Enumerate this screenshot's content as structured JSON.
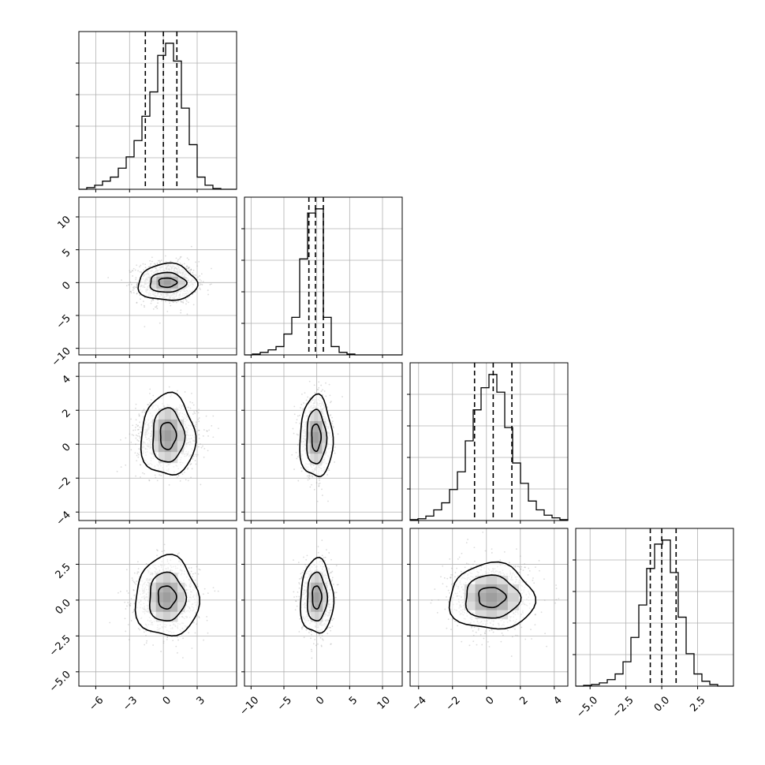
{
  "chart_data": {
    "type": "corner",
    "title": "",
    "grid": true,
    "quantile_lines": "dashed",
    "contour_levels": 3,
    "parameters": [
      {
        "range": [
          -7.5,
          6.5
        ],
        "ticks": [
          -6,
          -3,
          0,
          3
        ],
        "tick_labels": [
          "−6",
          "−3",
          "0",
          "3"
        ],
        "quantiles": [
          -1.6,
          0.0,
          1.2
        ],
        "histogram": {
          "bin_edges": [
            -7.5,
            -6.8,
            -6.1,
            -5.4,
            -4.7,
            -4.0,
            -3.3,
            -2.6,
            -1.9,
            -1.2,
            -0.5,
            0.2,
            0.9,
            1.6,
            2.3,
            3.0,
            3.7,
            4.4,
            5.1,
            5.8,
            6.5
          ],
          "counts": [
            0,
            2,
            5,
            10,
            15,
            26,
            40,
            60,
            90,
            120,
            165,
            180,
            158,
            100,
            55,
            15,
            5,
            1,
            0,
            0
          ]
        }
      },
      {
        "range": [
          -11,
          13
        ],
        "ticks": [
          -10,
          -5,
          0,
          5,
          10
        ],
        "tick_labels": [
          "−10",
          "−5",
          "0",
          "5",
          "10"
        ],
        "quantiles": [
          -1.2,
          -0.2,
          1.0
        ],
        "histogram": {
          "bin_edges": [
            -11,
            -9.8,
            -8.6,
            -7.4,
            -6.2,
            -5.0,
            -3.8,
            -2.6,
            -1.4,
            -0.2,
            1.0,
            2.2,
            3.4,
            4.6,
            5.8,
            7.0,
            8.2,
            9.4,
            10.6,
            11.8,
            13
          ],
          "counts": [
            0,
            1,
            3,
            6,
            10,
            25,
            45,
            115,
            170,
            175,
            45,
            10,
            3,
            1,
            0,
            0,
            0,
            0,
            0,
            0
          ]
        }
      },
      {
        "range": [
          -4.5,
          4.8
        ],
        "ticks": [
          -4,
          -2,
          0,
          2,
          4
        ],
        "tick_labels": [
          "−4",
          "−2",
          "0",
          "2",
          "4"
        ],
        "quantiles": [
          -0.7,
          0.4,
          1.5
        ],
        "histogram": {
          "bin_edges": [
            -4.5,
            -4.035,
            -3.57,
            -3.105,
            -2.64,
            -2.175,
            -1.71,
            -1.245,
            -0.78,
            -0.315,
            0.15,
            0.615,
            1.08,
            1.545,
            2.01,
            2.475,
            2.94,
            3.405,
            3.87,
            4.335,
            4.8
          ],
          "counts": [
            1,
            2,
            5,
            12,
            20,
            35,
            55,
            90,
            125,
            150,
            165,
            145,
            105,
            65,
            42,
            22,
            12,
            6,
            3,
            1
          ]
        }
      },
      {
        "range": [
          -6,
          5
        ],
        "ticks": [
          -5.0,
          -2.5,
          0.0,
          2.5
        ],
        "tick_labels": [
          "−5.0",
          "−2.5",
          "0.0",
          "2.5"
        ],
        "quantiles": [
          -0.8,
          0.0,
          1.0
        ],
        "histogram": {
          "bin_edges": [
            -6.0,
            -5.45,
            -4.9,
            -4.35,
            -3.8,
            -3.25,
            -2.7,
            -2.15,
            -1.6,
            -1.05,
            -0.5,
            0.05,
            0.6,
            1.15,
            1.7,
            2.25,
            2.8,
            3.35,
            3.9,
            4.45,
            5.0
          ],
          "counts": [
            0,
            1,
            2,
            4,
            8,
            15,
            30,
            60,
            100,
            145,
            175,
            180,
            140,
            85,
            40,
            15,
            6,
            2,
            0,
            0
          ]
        }
      }
    ],
    "pairs": [
      {
        "row": 1,
        "col": 0,
        "x_spread": 1.3,
        "y_spread": 1.6,
        "contours": [
          {
            "cx": 0.35,
            "cy": 0.0,
            "rx": 2.6,
            "ry": 2.8
          },
          {
            "cx": 0.35,
            "cy": 0.0,
            "rx": 1.6,
            "ry": 1.5
          },
          {
            "cx": 0.35,
            "cy": 0.0,
            "rx": 0.8,
            "ry": 0.7
          }
        ]
      },
      {
        "row": 2,
        "col": 0,
        "x_spread": 1.4,
        "y_spread": 1.0,
        "contours": [
          {
            "cx": 0.4,
            "cy": 0.5,
            "rx": 2.4,
            "ry": 2.4
          },
          {
            "cx": 0.4,
            "cy": 0.5,
            "rx": 1.4,
            "ry": 1.6
          },
          {
            "cx": 0.4,
            "cy": 0.5,
            "rx": 0.7,
            "ry": 0.8
          }
        ]
      },
      {
        "row": 2,
        "col": 1,
        "x_spread": 1.1,
        "y_spread": 1.1,
        "contours": [
          {
            "cx": -0.1,
            "cy": 0.4,
            "rx": 2.5,
            "ry": 2.4
          },
          {
            "cx": -0.1,
            "cy": 0.4,
            "rx": 1.5,
            "ry": 1.6
          },
          {
            "cx": -0.1,
            "cy": 0.4,
            "rx": 0.7,
            "ry": 0.8
          }
        ]
      },
      {
        "row": 3,
        "col": 0,
        "x_spread": 1.4,
        "y_spread": 1.2,
        "contours": [
          {
            "cx": 0.3,
            "cy": 0.2,
            "rx": 2.8,
            "ry": 2.8
          },
          {
            "cx": 0.3,
            "cy": 0.2,
            "rx": 1.6,
            "ry": 1.7
          },
          {
            "cx": 0.3,
            "cy": 0.2,
            "rx": 0.8,
            "ry": 0.8
          }
        ]
      },
      {
        "row": 3,
        "col": 1,
        "x_spread": 1.1,
        "y_spread": 1.2,
        "contours": [
          {
            "cx": 0.0,
            "cy": 0.2,
            "rx": 2.5,
            "ry": 2.6
          },
          {
            "cx": 0.0,
            "cy": 0.2,
            "rx": 1.5,
            "ry": 1.7
          },
          {
            "cx": 0.0,
            "cy": 0.2,
            "rx": 0.7,
            "ry": 0.8
          }
        ]
      },
      {
        "row": 3,
        "col": 2,
        "x_spread": 1.2,
        "y_spread": 1.2,
        "contours": [
          {
            "cx": 0.3,
            "cy": 0.2,
            "rx": 2.5,
            "ry": 2.3
          },
          {
            "cx": 0.3,
            "cy": 0.2,
            "rx": 1.6,
            "ry": 1.5
          },
          {
            "cx": 0.3,
            "cy": 0.2,
            "rx": 0.8,
            "ry": 0.7
          }
        ]
      }
    ],
    "colors": {
      "line": "#000000",
      "grid": "#b0b0b0",
      "points": "#999999"
    }
  }
}
